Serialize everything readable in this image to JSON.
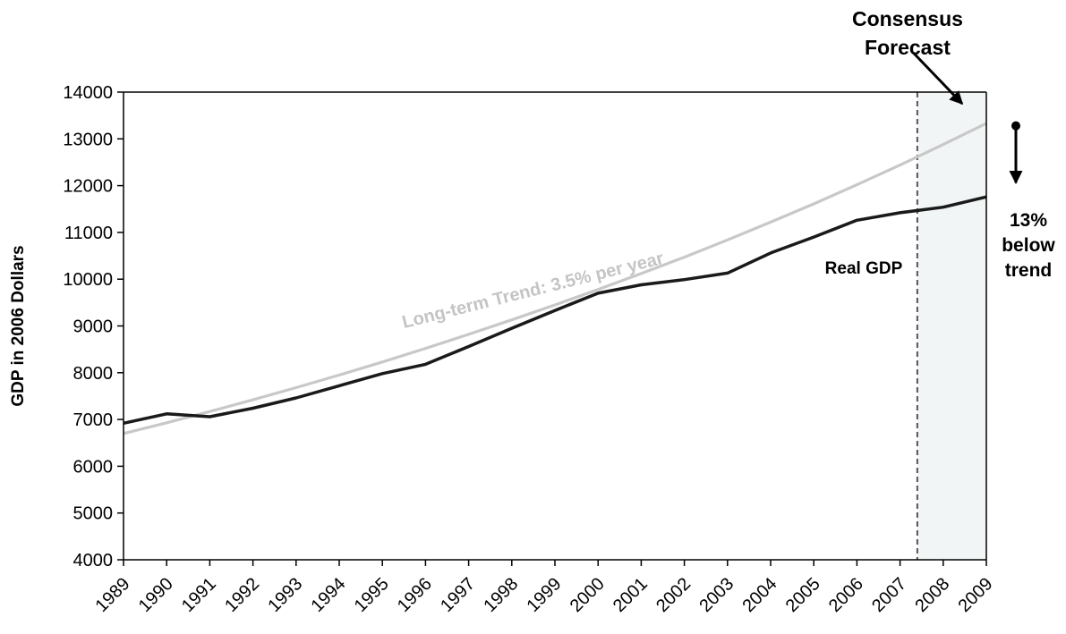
{
  "chart_data": {
    "type": "line",
    "title": "",
    "xlabel": "",
    "ylabel": "GDP in 2006 Dollars",
    "x": [
      1989,
      1990,
      1991,
      1992,
      1993,
      1994,
      1995,
      1996,
      1997,
      1998,
      1999,
      2000,
      2001,
      2002,
      2003,
      2004,
      2005,
      2006,
      2007,
      2008,
      2009
    ],
    "ylim": [
      4000,
      14000
    ],
    "yticks": [
      4000,
      5000,
      6000,
      7000,
      8000,
      9000,
      10000,
      11000,
      12000,
      13000,
      14000
    ],
    "grid": false,
    "series": [
      {
        "name": "Real GDP",
        "color": "#1a1a1a",
        "values": [
          6920,
          7120,
          7060,
          7240,
          7460,
          7720,
          7980,
          8180,
          8560,
          8950,
          9330,
          9700,
          9880,
          9990,
          10130,
          10560,
          10900,
          11260,
          11420,
          11540,
          11760
        ]
      },
      {
        "name": "Long-term Trend:  3.5% per year",
        "color": "#c8c8c8",
        "values": [
          6700,
          6930,
          7170,
          7420,
          7680,
          7950,
          8230,
          8520,
          8820,
          9130,
          9450,
          9780,
          10120,
          10470,
          10840,
          11220,
          11610,
          12020,
          12440,
          12880,
          13330
        ]
      }
    ],
    "forecast_region": {
      "start": 2007.4,
      "end": 2009,
      "fill": "#f2f5f5",
      "label_line1": "Consensus",
      "label_line2": "Forecast"
    },
    "gap_annotation": {
      "from_value": 13280,
      "to_value": 12060,
      "line1": "13%",
      "line2": "below",
      "line3": "trend"
    }
  }
}
